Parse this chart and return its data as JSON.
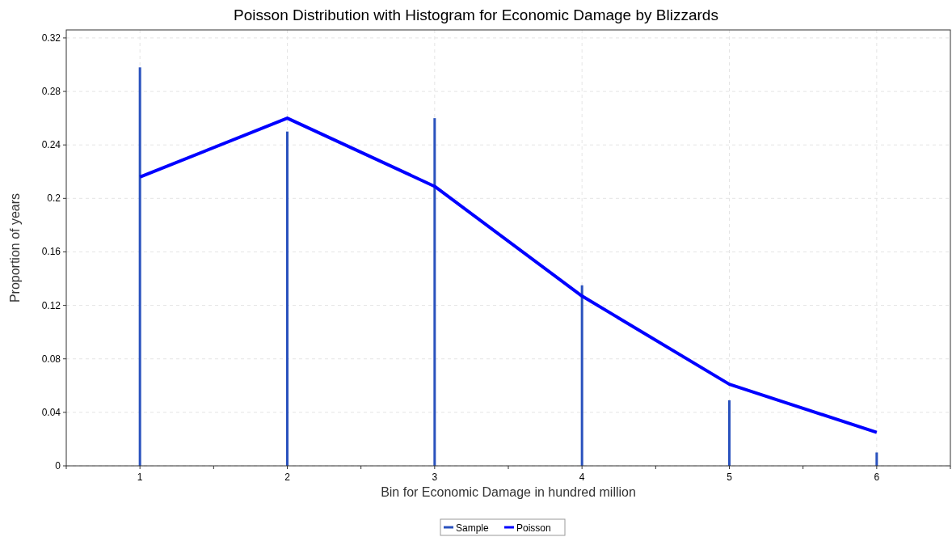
{
  "chart_data": {
    "type": "line",
    "title": "Poisson Distribution with Histogram for Economic Damage by Blizzards",
    "xlabel": "Bin for Economic Damage in hundred million",
    "ylabel": "Proportion of years",
    "x": [
      1,
      2,
      3,
      4,
      5,
      6
    ],
    "series": [
      {
        "name": "Sample",
        "type": "bar",
        "color": "#2a52be",
        "values": [
          0.298,
          0.25,
          0.26,
          0.135,
          0.049,
          0.01
        ]
      },
      {
        "name": "Poisson",
        "color": "#0000ff",
        "values": [
          0.216,
          0.26,
          0.209,
          0.127,
          0.061,
          0.025
        ]
      }
    ],
    "xlim": [
      0.5,
      6.5
    ],
    "xticks": [
      {
        "value": 0.5,
        "label": null
      },
      1,
      {
        "value": 1.5,
        "label": null
      },
      2,
      {
        "value": 2.5,
        "label": null
      },
      3,
      {
        "value": 3.5,
        "label": null
      },
      4,
      {
        "value": 4.5,
        "label": null
      },
      5,
      {
        "value": 5.5,
        "label": null
      },
      6,
      {
        "value": 6.5,
        "label": null
      }
    ],
    "ylim": [
      0,
      0.326
    ],
    "yticks": [
      0,
      0.04,
      0.08,
      0.12,
      0.16,
      0.2,
      0.24,
      0.28,
      0.32
    ],
    "grid": true,
    "legend": "bottom",
    "marker": "none",
    "line_style": "solid"
  }
}
